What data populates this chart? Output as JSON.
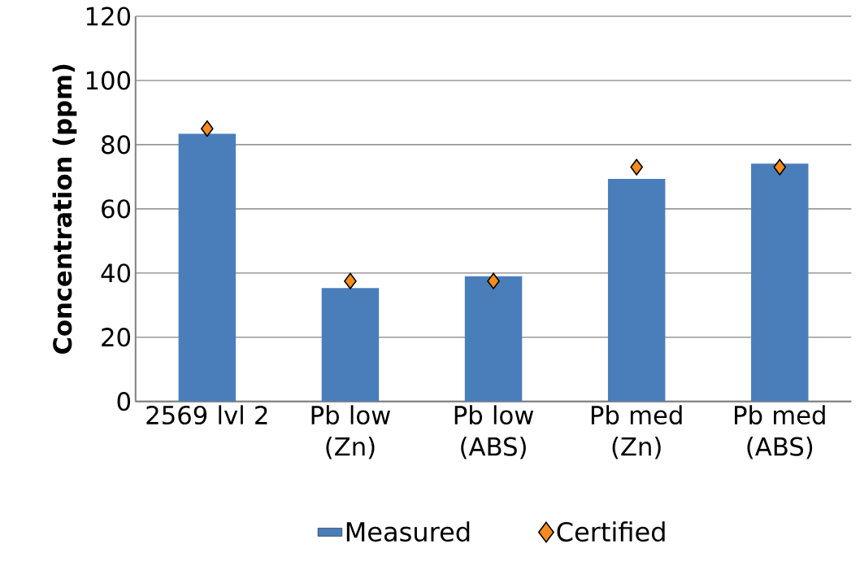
{
  "chart_data": {
    "type": "bar",
    "ylabel": "Concentration (ppm)",
    "categories": [
      "2569 lvl 2",
      "Pb low (Zn)",
      "Pb low (ABS)",
      "Pb med (Zn)",
      "Pb med (ABS)"
    ],
    "series": [
      {
        "name": "Measured",
        "color": "#4a7ebb",
        "values": [
          83.4,
          35.3,
          39.0,
          69.3,
          74.1
        ]
      },
      {
        "name": "Certified",
        "type": "scatter",
        "marker": "diamond",
        "color": "#f68b1f",
        "values": [
          85,
          37.5,
          37.5,
          73,
          73
        ]
      }
    ],
    "ylim": [
      0,
      120
    ],
    "yticks": [
      0,
      20,
      40,
      60,
      80,
      100,
      120
    ],
    "grid": "y",
    "legend": "bottom"
  }
}
